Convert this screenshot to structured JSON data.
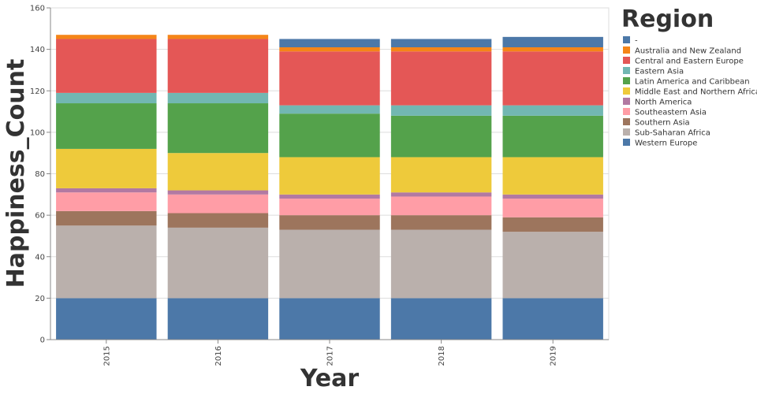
{
  "chart_data": {
    "type": "bar",
    "stacked": true,
    "categories": [
      "2015",
      "2016",
      "2017",
      "2018",
      "2019"
    ],
    "xlabel": "Year",
    "ylabel": "Happiness_Count",
    "ylim": [
      0,
      160
    ],
    "yticks": [
      0,
      20,
      40,
      60,
      80,
      100,
      120,
      140,
      160
    ],
    "grid": true,
    "legend_title": "Region",
    "legend_position": "right",
    "series": [
      {
        "name": "Western Europe",
        "color": "#4c78a8",
        "values": [
          20,
          20,
          20,
          20,
          20
        ]
      },
      {
        "name": "Sub-Saharan Africa",
        "color": "#bab0ac",
        "values": [
          35,
          34,
          33,
          33,
          32
        ]
      },
      {
        "name": "Southern Asia",
        "color": "#9d755d",
        "values": [
          7,
          7,
          7,
          7,
          7
        ]
      },
      {
        "name": "Southeastern Asia",
        "color": "#ff9da6",
        "values": [
          9,
          9,
          8,
          9,
          9
        ]
      },
      {
        "name": "North America",
        "color": "#b279a2",
        "values": [
          2,
          2,
          2,
          2,
          2
        ]
      },
      {
        "name": "Middle East and Northern Africa",
        "color": "#eeca3b",
        "values": [
          19,
          18,
          18,
          17,
          18
        ]
      },
      {
        "name": "Latin America and Caribbean",
        "color": "#54a24b",
        "values": [
          22,
          24,
          21,
          20,
          20
        ]
      },
      {
        "name": "Eastern Asia",
        "color": "#72b7b2",
        "values": [
          5,
          5,
          4,
          5,
          5
        ]
      },
      {
        "name": "Central and Eastern Europe",
        "color": "#e45756",
        "values": [
          26,
          26,
          26,
          26,
          26
        ]
      },
      {
        "name": "Australia and New Zealand",
        "color": "#f58518",
        "values": [
          2,
          2,
          2,
          2,
          2
        ]
      },
      {
        "name": "-",
        "color": "#4c78a8",
        "values": [
          0,
          0,
          4,
          4,
          5
        ]
      }
    ],
    "legend_order": [
      "-",
      "Australia and New Zealand",
      "Central and Eastern Europe",
      "Eastern Asia",
      "Latin America and Caribbean",
      "Middle East and Northern Africa",
      "North America",
      "Southeastern Asia",
      "Southern Asia",
      "Sub-Saharan Africa",
      "Western Europe"
    ]
  }
}
